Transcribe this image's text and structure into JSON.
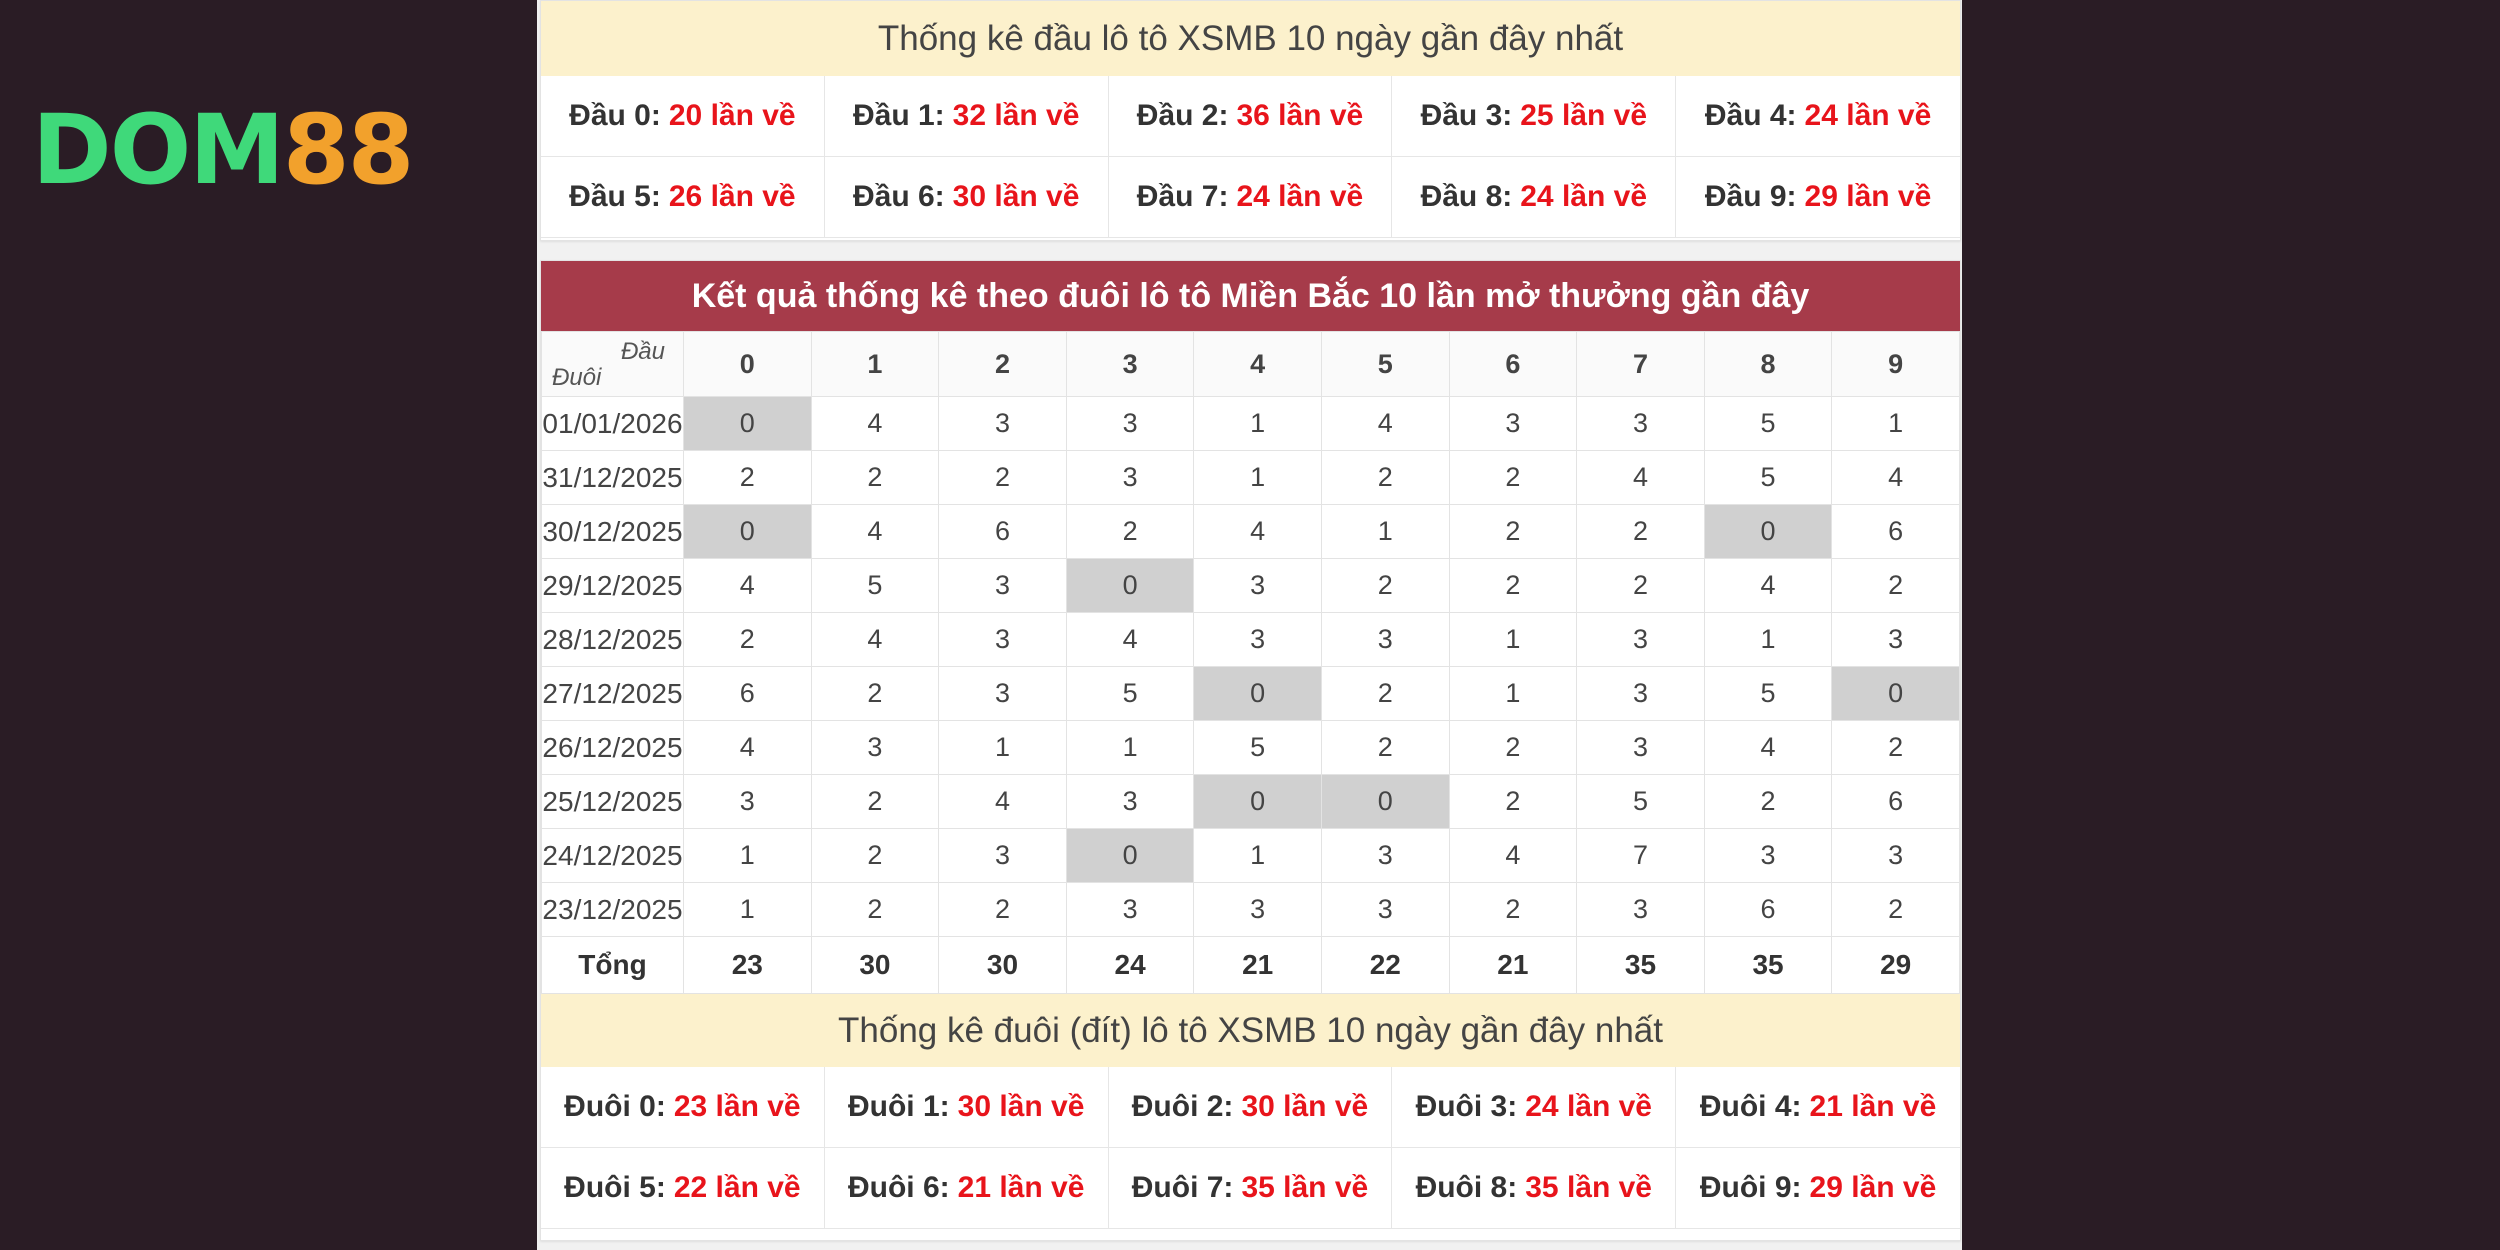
{
  "logo": {
    "part1": "DOM",
    "part2": "88"
  },
  "dau_section": {
    "title": "Thống kê đầu lô tô XSMB 10 ngày gần đây nhất",
    "items": [
      {
        "label": "Đầu 0:",
        "value": "20 lần về"
      },
      {
        "label": "Đầu 1:",
        "value": "32 lần về"
      },
      {
        "label": "Đầu 2:",
        "value": "36 lần về"
      },
      {
        "label": "Đầu 3:",
        "value": "25 lần về"
      },
      {
        "label": "Đầu 4:",
        "value": "24 lần về"
      },
      {
        "label": "Đầu 5:",
        "value": "26 lần về"
      },
      {
        "label": "Đầu 6:",
        "value": "30 lần về"
      },
      {
        "label": "Đầu 7:",
        "value": "24 lần về"
      },
      {
        "label": "Đầu 8:",
        "value": "24 lần về"
      },
      {
        "label": "Đầu 9:",
        "value": "29 lần về"
      }
    ]
  },
  "table": {
    "title": "Kết quả thống kê theo đuôi lô tô Miền Bắc 10 lần mở thưởng gần đây",
    "corner_top": "Đầu",
    "corner_bottom": "Đuôi",
    "columns": [
      "0",
      "1",
      "2",
      "3",
      "4",
      "5",
      "6",
      "7",
      "8",
      "9"
    ],
    "rows": [
      {
        "date": "01/01/2026",
        "values": [
          "0",
          "4",
          "3",
          "3",
          "1",
          "4",
          "3",
          "3",
          "5",
          "1"
        ]
      },
      {
        "date": "31/12/2025",
        "values": [
          "2",
          "2",
          "2",
          "3",
          "1",
          "2",
          "2",
          "4",
          "5",
          "4"
        ]
      },
      {
        "date": "30/12/2025",
        "values": [
          "0",
          "4",
          "6",
          "2",
          "4",
          "1",
          "2",
          "2",
          "0",
          "6"
        ]
      },
      {
        "date": "29/12/2025",
        "values": [
          "4",
          "5",
          "3",
          "0",
          "3",
          "2",
          "2",
          "2",
          "4",
          "2"
        ]
      },
      {
        "date": "28/12/2025",
        "values": [
          "2",
          "4",
          "3",
          "4",
          "3",
          "3",
          "1",
          "3",
          "1",
          "3"
        ]
      },
      {
        "date": "27/12/2025",
        "values": [
          "6",
          "2",
          "3",
          "5",
          "0",
          "2",
          "1",
          "3",
          "5",
          "0"
        ]
      },
      {
        "date": "26/12/2025",
        "values": [
          "4",
          "3",
          "1",
          "1",
          "5",
          "2",
          "2",
          "3",
          "4",
          "2"
        ]
      },
      {
        "date": "25/12/2025",
        "values": [
          "3",
          "2",
          "4",
          "3",
          "0",
          "0",
          "2",
          "5",
          "2",
          "6"
        ]
      },
      {
        "date": "24/12/2025",
        "values": [
          "1",
          "2",
          "3",
          "0",
          "1",
          "3",
          "4",
          "7",
          "3",
          "3"
        ]
      },
      {
        "date": "23/12/2025",
        "values": [
          "1",
          "2",
          "2",
          "3",
          "3",
          "3",
          "2",
          "3",
          "6",
          "2"
        ]
      }
    ],
    "total_label": "Tổng",
    "totals": [
      "23",
      "30",
      "30",
      "24",
      "21",
      "22",
      "21",
      "35",
      "35",
      "29"
    ]
  },
  "duoi_section": {
    "title": "Thống kê đuôi (đít) lô tô XSMB 10 ngày gần đây nhất",
    "items": [
      {
        "label": "Đuôi 0:",
        "value": "23 lần về"
      },
      {
        "label": "Đuôi 1:",
        "value": "30 lần về"
      },
      {
        "label": "Đuôi 2:",
        "value": "30 lần về"
      },
      {
        "label": "Đuôi 3:",
        "value": "24 lần về"
      },
      {
        "label": "Đuôi 4:",
        "value": "21 lần về"
      },
      {
        "label": "Đuôi 5:",
        "value": "22 lần về"
      },
      {
        "label": "Đuôi 6:",
        "value": "21 lần về"
      },
      {
        "label": "Đuôi 7:",
        "value": "35 lần về"
      },
      {
        "label": "Đuôi 8:",
        "value": "35 lần về"
      },
      {
        "label": "Đuôi 9:",
        "value": "29 lần về"
      }
    ]
  },
  "colors": {
    "accent_red": "#e8141b",
    "header_bar": "#a63b4a",
    "yellow_header": "#fcf1cc",
    "zero_cell": "#d0d0d0",
    "background": "#2a1c25"
  }
}
